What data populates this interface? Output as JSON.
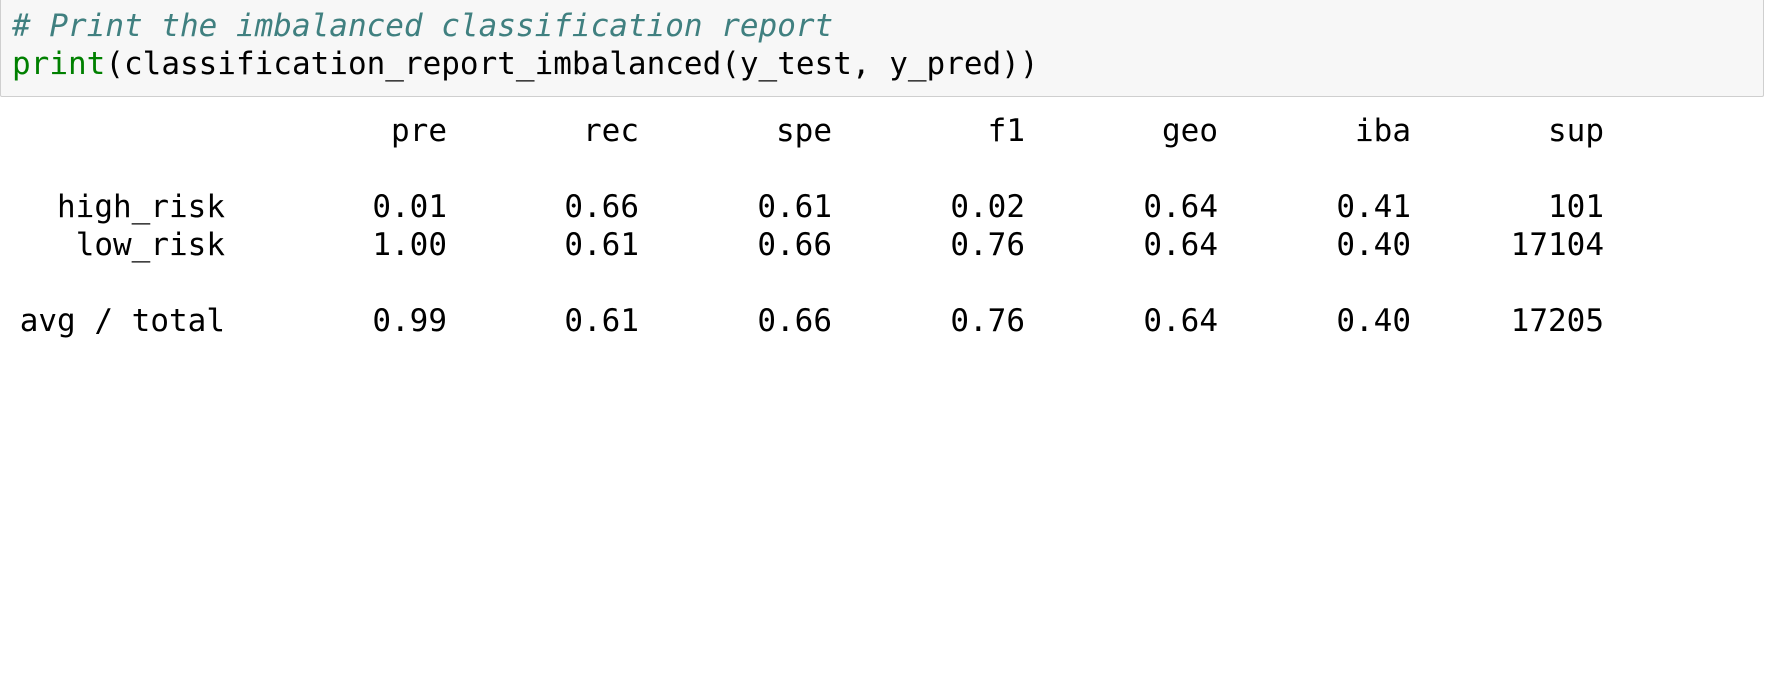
{
  "code": {
    "comment": "# Print the imbalanced classification report",
    "builtin": "print",
    "call": "(classification_report_imbalanced(y_test, y_pred))"
  },
  "report": {
    "headers": [
      "pre",
      "rec",
      "spe",
      "f1",
      "geo",
      "iba",
      "sup"
    ],
    "rows": [
      {
        "label": "high_risk",
        "values": [
          "0.01",
          "0.66",
          "0.61",
          "0.02",
          "0.64",
          "0.41",
          "101"
        ]
      },
      {
        "label": "low_risk",
        "values": [
          "1.00",
          "0.61",
          "0.66",
          "0.76",
          "0.64",
          "0.40",
          "17104"
        ]
      }
    ],
    "total": {
      "label": "avg / total",
      "values": [
        "0.99",
        "0.61",
        "0.66",
        "0.76",
        "0.64",
        "0.40",
        "17205"
      ]
    }
  }
}
